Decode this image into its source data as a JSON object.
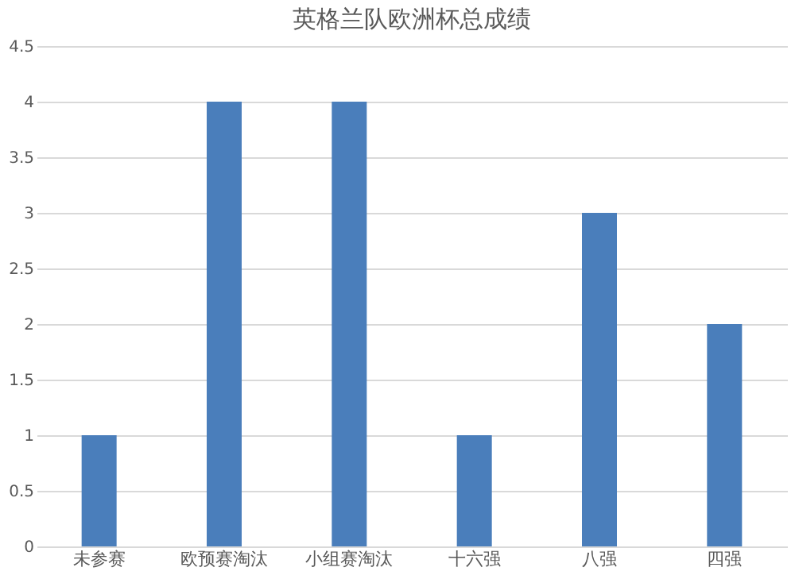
{
  "chart_data": {
    "type": "bar",
    "title": "英格兰队欧洲杯总成绩",
    "categories": [
      "未参赛",
      "欧预赛淘汰",
      "小组赛淘汰",
      "十六强",
      "八强",
      "四强"
    ],
    "values": [
      1,
      4,
      4,
      1,
      3,
      2
    ],
    "color": "#4a7ebb",
    "ylim": [
      0,
      4.5
    ],
    "yticks": [
      0,
      0.5,
      1,
      1.5,
      2,
      2.5,
      3,
      3.5,
      4,
      4.5
    ],
    "grid": "y"
  }
}
